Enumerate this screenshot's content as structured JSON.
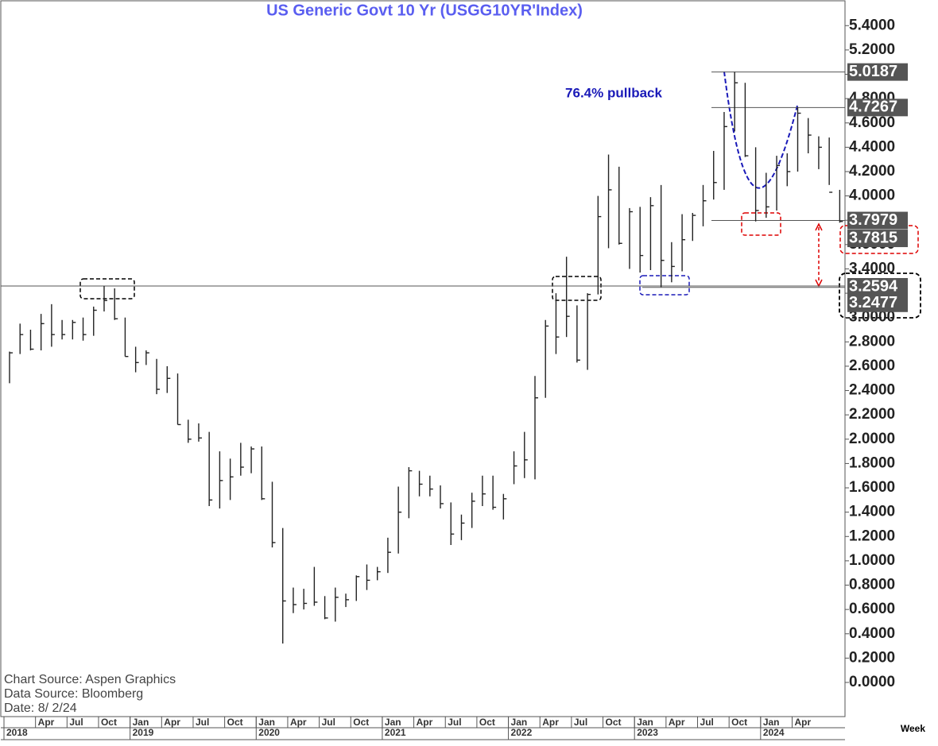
{
  "chart_data": {
    "type": "hlc",
    "title": "US  Generic  Govt  10  Yr  (USGG10YR'Index)",
    "annotation": "76.4% pullback",
    "notes": [
      "Chart Source:  Aspen Graphics",
      "Data  Source:  Bloomberg",
      "Date:    8/  2/24"
    ],
    "period_label": "Week",
    "x": [
      "2018-01",
      "2018-02",
      "2018-03",
      "2018-04",
      "2018-05",
      "2018-06",
      "2018-07",
      "2018-08",
      "2018-09",
      "2018-10",
      "2018-11",
      "2018-12",
      "2019-01",
      "2019-02",
      "2019-03",
      "2019-04",
      "2019-05",
      "2019-06",
      "2019-07",
      "2019-08",
      "2019-09",
      "2019-10",
      "2019-11",
      "2019-12",
      "2020-01",
      "2020-02",
      "2020-03",
      "2020-04",
      "2020-05",
      "2020-06",
      "2020-07",
      "2020-08",
      "2020-09",
      "2020-10",
      "2020-11",
      "2020-12",
      "2021-01",
      "2021-02",
      "2021-03",
      "2021-04",
      "2021-05",
      "2021-06",
      "2021-07",
      "2021-08",
      "2021-09",
      "2021-10",
      "2021-11",
      "2021-12",
      "2022-01",
      "2022-02",
      "2022-03",
      "2022-04",
      "2022-05",
      "2022-06",
      "2022-07",
      "2022-08",
      "2022-09",
      "2022-10",
      "2022-11",
      "2022-12",
      "2023-01",
      "2023-02",
      "2023-03",
      "2023-04",
      "2023-05",
      "2023-06",
      "2023-07",
      "2023-08",
      "2023-09",
      "2023-10",
      "2023-11",
      "2023-12",
      "2024-01",
      "2024-02",
      "2024-03",
      "2024-04",
      "2024-05",
      "2024-06",
      "2024-07",
      "2024-08"
    ],
    "high": [
      2.72,
      2.95,
      2.9,
      3.03,
      3.11,
      2.98,
      2.98,
      3.0,
      3.09,
      3.26,
      3.24,
      3.0,
      2.76,
      2.73,
      2.66,
      2.6,
      2.54,
      2.16,
      2.13,
      2.06,
      1.9,
      1.84,
      1.97,
      1.94,
      1.94,
      1.65,
      1.27,
      0.78,
      0.77,
      0.95,
      0.71,
      0.78,
      0.73,
      0.88,
      0.97,
      0.95,
      1.19,
      1.61,
      1.77,
      1.74,
      1.7,
      1.62,
      1.48,
      1.38,
      1.56,
      1.7,
      1.7,
      1.55,
      1.9,
      2.06,
      2.52,
      2.98,
      3.2,
      3.5,
      3.1,
      3.2,
      4.0,
      4.34,
      4.24,
      3.9,
      3.91,
      3.99,
      4.09,
      3.62,
      3.85,
      3.86,
      4.09,
      4.37,
      4.69,
      5.02,
      4.93,
      4.4,
      4.19,
      4.33,
      4.35,
      4.73,
      4.64,
      4.49,
      4.48,
      4.05
    ],
    "low": [
      2.46,
      2.7,
      2.73,
      2.73,
      2.76,
      2.82,
      2.82,
      2.81,
      2.85,
      3.05,
      2.98,
      2.68,
      2.55,
      2.61,
      2.37,
      2.38,
      2.12,
      1.97,
      1.98,
      1.45,
      1.43,
      1.5,
      1.7,
      1.72,
      1.5,
      1.11,
      0.32,
      0.57,
      0.6,
      0.63,
      0.52,
      0.5,
      0.62,
      0.67,
      0.76,
      0.84,
      0.9,
      1.06,
      1.35,
      1.53,
      1.53,
      1.43,
      1.13,
      1.17,
      1.27,
      1.45,
      1.42,
      1.34,
      1.63,
      1.68,
      1.67,
      2.34,
      2.7,
      2.84,
      2.63,
      2.57,
      3.19,
      3.57,
      3.6,
      3.4,
      3.37,
      3.39,
      3.25,
      3.29,
      3.38,
      3.63,
      3.75,
      3.97,
      4.05,
      4.53,
      4.32,
      3.79,
      3.82,
      3.88,
      4.08,
      4.2,
      4.35,
      4.22,
      4.09,
      3.78
    ],
    "close": [
      2.71,
      2.86,
      2.74,
      2.95,
      2.86,
      2.86,
      2.96,
      2.86,
      3.06,
      3.14,
      2.99,
      2.68,
      2.63,
      2.71,
      2.41,
      2.5,
      2.12,
      2.0,
      2.01,
      1.5,
      1.66,
      1.69,
      1.77,
      1.92,
      1.51,
      1.15,
      0.67,
      0.64,
      0.65,
      0.66,
      0.53,
      0.7,
      0.68,
      0.87,
      0.84,
      0.91,
      1.07,
      1.4,
      1.74,
      1.63,
      1.59,
      1.47,
      1.22,
      1.31,
      1.49,
      1.55,
      1.44,
      1.51,
      1.78,
      1.83,
      2.34,
      2.93,
      2.84,
      3.01,
      2.65,
      3.19,
      3.83,
      4.05,
      3.61,
      3.87,
      3.51,
      3.92,
      3.47,
      3.42,
      3.64,
      3.84,
      3.96,
      4.11,
      4.57,
      4.93,
      4.33,
      3.88,
      3.91,
      4.25,
      4.2,
      4.68,
      4.5,
      4.4,
      4.03,
      3.79
    ],
    "color": "#222222",
    "levels": [
      5.0187,
      4.7267,
      3.7979,
      3.7815,
      3.2594,
      3.2477
    ],
    "ylim": [
      -0.2,
      5.6
    ],
    "yticks": [
      {
        "value": 0,
        "label": "0.0000"
      },
      {
        "value": 0.2,
        "label": "0.2000"
      },
      {
        "value": 0.4,
        "label": "0.4000"
      },
      {
        "value": 0.6,
        "label": "0.6000"
      },
      {
        "value": 0.8,
        "label": "0.8000"
      },
      {
        "value": 1,
        "label": "1.0000"
      },
      {
        "value": 1.2,
        "label": "1.2000"
      },
      {
        "value": 1.4,
        "label": "1.4000"
      },
      {
        "value": 1.6,
        "label": "1.6000"
      },
      {
        "value": 1.8,
        "label": "1.8000"
      },
      {
        "value": 2,
        "label": "2.0000"
      },
      {
        "value": 2.2,
        "label": "2.2000"
      },
      {
        "value": 2.4,
        "label": "2.4000"
      },
      {
        "value": 2.6,
        "label": "2.6000"
      },
      {
        "value": 2.8,
        "label": "2.8000"
      },
      {
        "value": 3,
        "label": "3.0000"
      },
      {
        "value": 3.2,
        "label": "3.2000"
      },
      {
        "value": 3.4,
        "label": "3.4000"
      },
      {
        "value": 3.6,
        "label": "3.6000"
      },
      {
        "value": 3.8,
        "label": "3.8000"
      },
      {
        "value": 4,
        "label": "4.0000"
      },
      {
        "value": 4.2,
        "label": "4.2000"
      },
      {
        "value": 4.4,
        "label": "4.4000"
      },
      {
        "value": 4.6,
        "label": "4.6000"
      },
      {
        "value": 4.8,
        "label": "4.8000"
      },
      {
        "value": 5,
        "label": "5.0000"
      },
      {
        "value": 5.2,
        "label": "5.2000"
      },
      {
        "value": 5.4,
        "label": "5.4000"
      }
    ],
    "month_ticks": [
      {
        "value": "2018-04",
        "label": "Apr"
      },
      {
        "value": "2018-07",
        "label": "Jul"
      },
      {
        "value": "2018-10",
        "label": "Oct"
      },
      {
        "value": "2019-01",
        "label": "Jan"
      },
      {
        "value": "2019-04",
        "label": "Apr"
      },
      {
        "value": "2019-07",
        "label": "Jul"
      },
      {
        "value": "2019-10",
        "label": "Oct"
      },
      {
        "value": "2020-01",
        "label": "Jan"
      },
      {
        "value": "2020-04",
        "label": "Apr"
      },
      {
        "value": "2020-07",
        "label": "Jul"
      },
      {
        "value": "2020-10",
        "label": "Oct"
      },
      {
        "value": "2021-01",
        "label": "Jan"
      },
      {
        "value": "2021-04",
        "label": "Apr"
      },
      {
        "value": "2021-07",
        "label": "Jul"
      },
      {
        "value": "2021-10",
        "label": "Oct"
      },
      {
        "value": "2022-01",
        "label": "Jan"
      },
      {
        "value": "2022-04",
        "label": "Apr"
      },
      {
        "value": "2022-07",
        "label": "Jul"
      },
      {
        "value": "2022-10",
        "label": "Oct"
      },
      {
        "value": "2023-01",
        "label": "Jan"
      },
      {
        "value": "2023-04",
        "label": "Apr"
      },
      {
        "value": "2023-07",
        "label": "Jul"
      },
      {
        "value": "2023-10",
        "label": "Oct"
      },
      {
        "value": "2024-01",
        "label": "Jan"
      },
      {
        "value": "2024-04",
        "label": "Apr"
      }
    ],
    "year_ticks": [
      {
        "value": "2018-01",
        "label": "2018"
      },
      {
        "value": "2019-01",
        "label": "2019"
      },
      {
        "value": "2020-01",
        "label": "2020"
      },
      {
        "value": "2021-01",
        "label": "2021"
      },
      {
        "value": "2022-01",
        "label": "2022"
      },
      {
        "value": "2023-01",
        "label": "2023"
      },
      {
        "value": "2024-01",
        "label": "2024"
      }
    ]
  }
}
